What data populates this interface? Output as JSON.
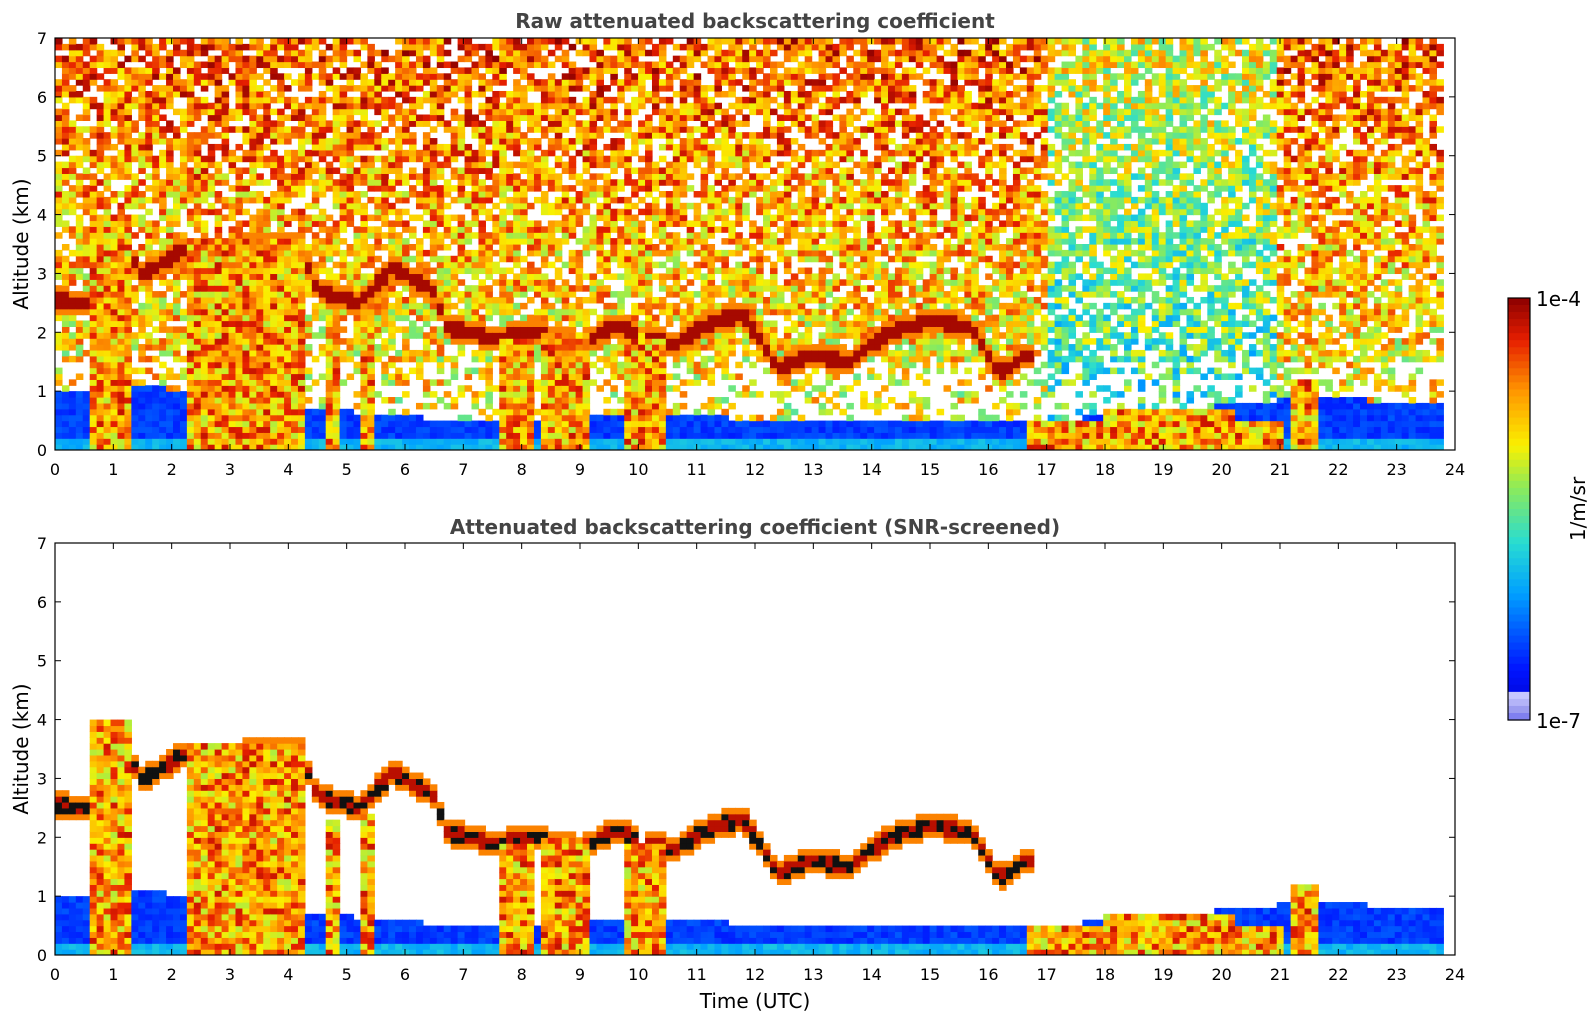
{
  "chart_data": [
    {
      "type": "heatmap",
      "title": "Raw attenuated backscattering coefficient",
      "xlabel": "",
      "ylabel": "Altitude (km)",
      "xlim": [
        0,
        24
      ],
      "ylim": [
        0,
        7
      ],
      "x_ticks": [
        "0",
        "1",
        "2",
        "3",
        "4",
        "5",
        "6",
        "7",
        "8",
        "9",
        "10",
        "11",
        "12",
        "13",
        "14",
        "15",
        "16",
        "17",
        "18",
        "19",
        "20",
        "21",
        "22",
        "23",
        "24"
      ],
      "y_ticks": [
        "0",
        "1",
        "2",
        "3",
        "4",
        "5",
        "6",
        "7"
      ],
      "data_end_time": 23.8,
      "cloud_layers": [
        {
          "t": 0.05,
          "alt": 2.55
        },
        {
          "t": 0.6,
          "alt": 2.5
        },
        {
          "t": 1.1,
          "alt": 3.6
        },
        {
          "t": 1.5,
          "alt": 3.0
        },
        {
          "t": 2.2,
          "alt": 3.4
        },
        {
          "t": 3.0,
          "alt": 3.4
        },
        {
          "t": 3.8,
          "alt": 3.5
        },
        {
          "t": 4.2,
          "alt": 3.5
        },
        {
          "t": 4.5,
          "alt": 2.7
        },
        {
          "t": 5.2,
          "alt": 2.5
        },
        {
          "t": 5.8,
          "alt": 3.1
        },
        {
          "t": 6.5,
          "alt": 2.7
        },
        {
          "t": 6.7,
          "alt": 2.1
        },
        {
          "t": 7.5,
          "alt": 1.9
        },
        {
          "t": 8.2,
          "alt": 2.0
        },
        {
          "t": 9.0,
          "alt": 1.8
        },
        {
          "t": 9.6,
          "alt": 2.1
        },
        {
          "t": 10.6,
          "alt": 1.8
        },
        {
          "t": 11.3,
          "alt": 2.2
        },
        {
          "t": 11.8,
          "alt": 2.3
        },
        {
          "t": 12.4,
          "alt": 1.4
        },
        {
          "t": 13.0,
          "alt": 1.6
        },
        {
          "t": 13.6,
          "alt": 1.5
        },
        {
          "t": 14.3,
          "alt": 2.0
        },
        {
          "t": 15.0,
          "alt": 2.2
        },
        {
          "t": 15.7,
          "alt": 2.1
        },
        {
          "t": 16.2,
          "alt": 1.3
        },
        {
          "t": 16.6,
          "alt": 1.6
        }
      ],
      "precip_shafts": [
        {
          "t0": 0.6,
          "t1": 1.35,
          "top": 4.0
        },
        {
          "t0": 2.3,
          "t1": 4.3,
          "top": 3.6
        },
        {
          "t0": 4.6,
          "t1": 4.9,
          "top": 2.3
        },
        {
          "t0": 5.2,
          "t1": 5.45,
          "top": 2.4
        },
        {
          "t0": 7.6,
          "t1": 8.2,
          "top": 1.9
        },
        {
          "t0": 8.35,
          "t1": 9.2,
          "top": 2.0
        },
        {
          "t0": 9.8,
          "t1": 10.5,
          "top": 1.9
        },
        {
          "t0": 16.7,
          "t1": 21.1,
          "top": 0.5
        },
        {
          "t0": 18.0,
          "t1": 20.2,
          "top": 0.7
        },
        {
          "t0": 21.2,
          "t1": 21.6,
          "top": 1.2
        }
      ]
    },
    {
      "type": "heatmap",
      "title": "Attenuated backscattering coefficient (SNR-screened)",
      "xlabel": "Time (UTC)",
      "ylabel": "Altitude (km)",
      "xlim": [
        0,
        24
      ],
      "ylim": [
        0,
        7
      ],
      "x_ticks": [
        "0",
        "1",
        "2",
        "3",
        "4",
        "5",
        "6",
        "7",
        "8",
        "9",
        "10",
        "11",
        "12",
        "13",
        "14",
        "15",
        "16",
        "17",
        "18",
        "19",
        "20",
        "21",
        "22",
        "23",
        "24"
      ],
      "y_ticks": [
        "0",
        "1",
        "2",
        "3",
        "4",
        "5",
        "6",
        "7"
      ],
      "data_end_time": 23.8,
      "boundary_layer_top": [
        {
          "t": 0,
          "alt": 1.0
        },
        {
          "t": 1.5,
          "alt": 1.1
        },
        {
          "t": 5.5,
          "alt": 0.6
        },
        {
          "t": 7.0,
          "alt": 0.5
        },
        {
          "t": 10.5,
          "alt": 0.6
        },
        {
          "t": 12.5,
          "alt": 0.5
        },
        {
          "t": 16.5,
          "alt": 0.45
        },
        {
          "t": 21.5,
          "alt": 0.9
        },
        {
          "t": 22.5,
          "alt": 0.85
        },
        {
          "t": 23.8,
          "alt": 0.75
        }
      ]
    }
  ],
  "colorbar": {
    "label": "1/m/sr",
    "top_label": "1e-4",
    "bottom_label": "1e-7"
  },
  "colors": {
    "low": "#0010f0",
    "mid": "#40d0b0",
    "high": "#ffd000",
    "peak": "#8b0000",
    "screen": "#ffffff"
  }
}
